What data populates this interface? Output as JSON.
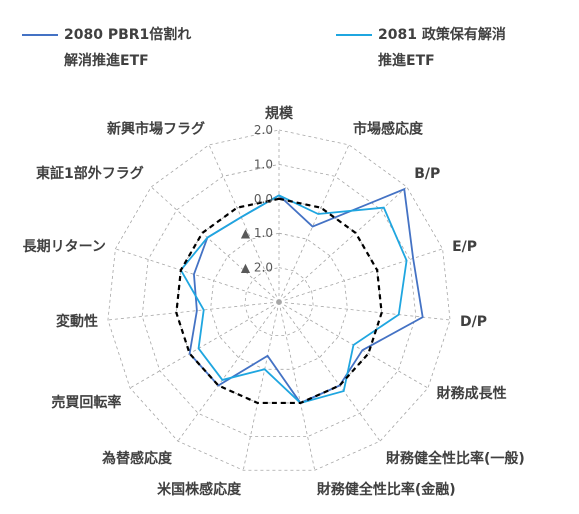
{
  "chart_data": {
    "type": "radar",
    "axes": [
      "規模",
      "市場感応度",
      "B/P",
      "E/P",
      "D/P",
      "財務成長性",
      "財務健全性比率(一般)",
      "財務健全性比率(金融)",
      "米国株感応度",
      "為替感応度",
      "売買回転率",
      "変動性",
      "長期リターン",
      "東証1部外フラグ",
      "新興市場フラグ"
    ],
    "rlim": [
      -3,
      2
    ],
    "ticks": [
      2.0,
      1.0,
      0.0,
      -1.0,
      -2.0
    ],
    "tick_labels": [
      "2.0",
      "1.0",
      "0.0",
      "▲ 1.0",
      "▲ 2.0"
    ],
    "series": [
      {
        "name": "2080 PBR1倍割れ 解消推進ETF",
        "color": "#4472C4",
        "values": [
          0.1,
          -0.6,
          1.9,
          1.1,
          1.2,
          -0.2,
          0.0,
          0.0,
          -1.4,
          0.0,
          0.0,
          -0.6,
          -0.4,
          -0.2,
          -0.3
        ]
      },
      {
        "name": "2081 政策保有解消 推進ETF",
        "color": "#1FA6E0",
        "values": [
          0.1,
          -0.2,
          1.1,
          0.9,
          0.5,
          -0.5,
          0.2,
          0.0,
          -1.0,
          -0.2,
          -0.3,
          -0.8,
          0.0,
          -0.2,
          -0.3
        ]
      },
      {
        "name": "",
        "color": "#000000",
        "dashed": true,
        "values": [
          0.0,
          0.0,
          0.0,
          0.0,
          0.0,
          0.0,
          0.0,
          0.0,
          0.0,
          0.0,
          0.0,
          0.0,
          0.0,
          0.0,
          0.0
        ]
      }
    ],
    "grid": true,
    "legend_position": "top"
  },
  "legend": {
    "a_line1": "2080 PBR1倍割れ",
    "a_line2": "解消推進ETF",
    "b_line1": "2081 政策保有解消",
    "b_line2": "推進ETF"
  }
}
